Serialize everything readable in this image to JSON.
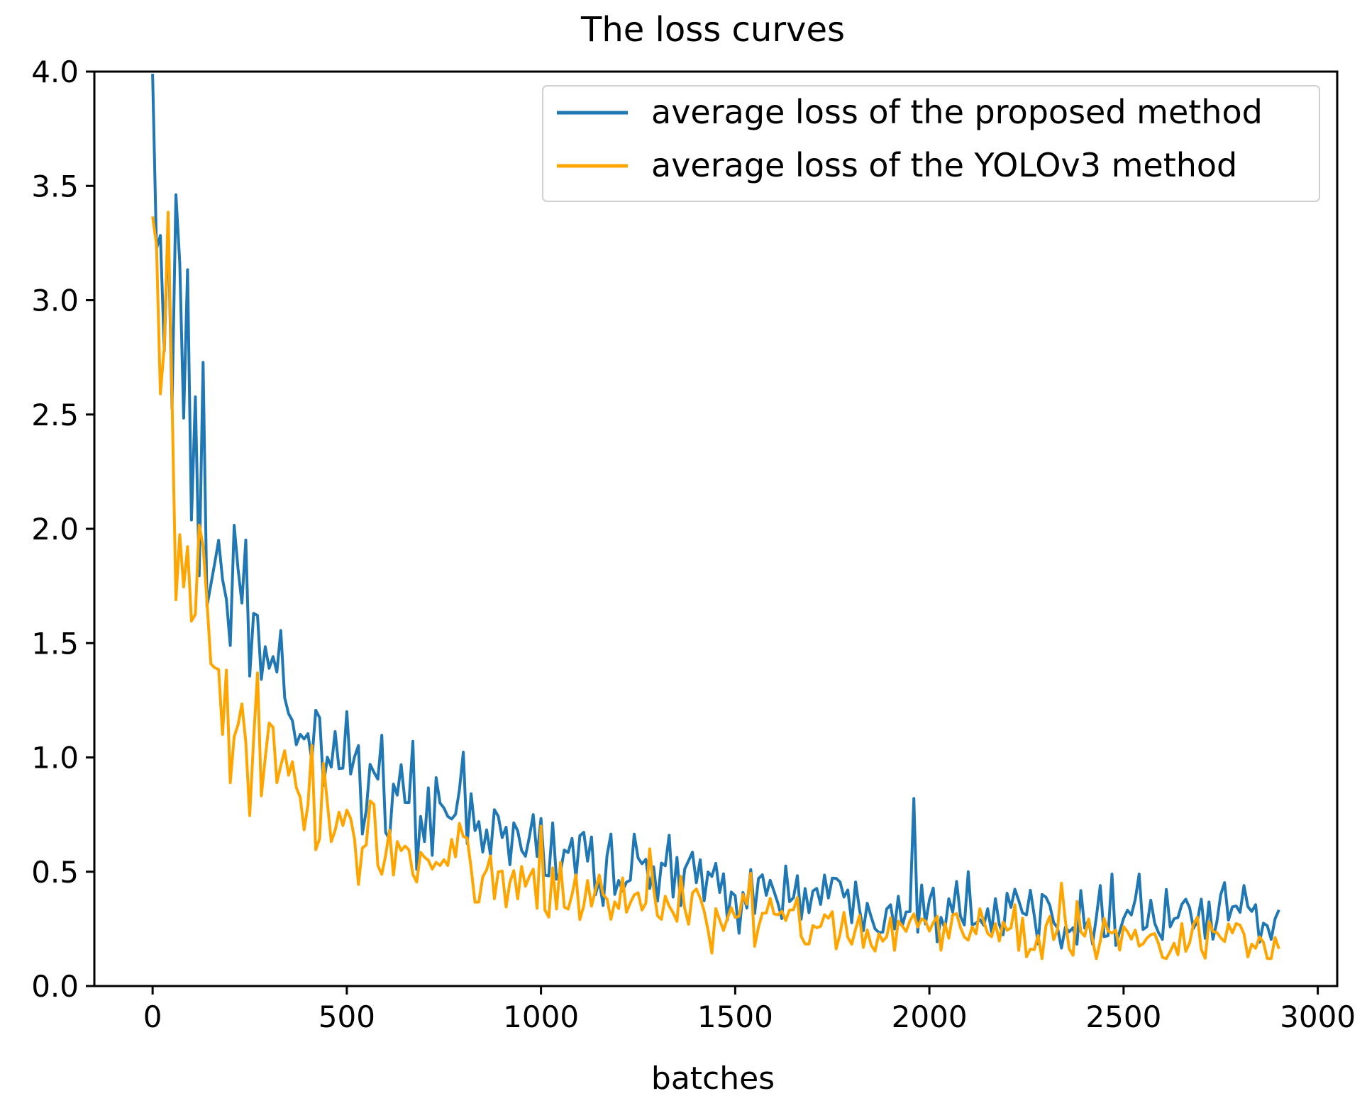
{
  "chart_data": {
    "type": "line",
    "title": "The loss curves",
    "xlabel": "batches",
    "ylabel": "",
    "xlim": [
      -150,
      3050
    ],
    "ylim": [
      0.0,
      4.0
    ],
    "xticks": [
      0,
      500,
      1000,
      1500,
      2000,
      2500,
      3000
    ],
    "yticks": [
      0.0,
      0.5,
      1.0,
      1.5,
      2.0,
      2.5,
      3.0,
      3.5,
      4.0
    ],
    "xtick_labels": [
      "0",
      "500",
      "1000",
      "1500",
      "2000",
      "2500",
      "3000"
    ],
    "ytick_labels": [
      "0.0",
      "0.5",
      "1.0",
      "1.5",
      "2.0",
      "2.5",
      "3.0",
      "3.5",
      "4.0"
    ],
    "grid": false,
    "legend_position": "top-right",
    "x_range": [
      0,
      2900
    ],
    "x_step": 10,
    "series": [
      {
        "name": "average loss of the proposed method",
        "color": "#1f77b4",
        "base_curve": {
          "start": 3.8,
          "floor": 0.27,
          "tau1": 115,
          "w1": 0.62,
          "tau2": 720,
          "w2": 0.38
        },
        "noise_amplitude": 0.22,
        "spikes": [
          {
            "x": 500,
            "y": 1.2
          },
          {
            "x": 1960,
            "y": 0.82
          },
          {
            "x": 2100,
            "y": 0.5
          },
          {
            "x": 2470,
            "y": 0.49
          },
          {
            "x": 2540,
            "y": 0.49
          },
          {
            "x": 260,
            "y": 1.63
          },
          {
            "x": 170,
            "y": 1.95
          }
        ]
      },
      {
        "name": "average loss of the YOLOv3 method",
        "color": "#ffa500",
        "base_curve": {
          "start": 3.65,
          "floor": 0.2,
          "tau1": 75,
          "w1": 0.68,
          "tau2": 640,
          "w2": 0.32
        },
        "noise_amplitude": 0.2,
        "spikes": [
          {
            "x": 1000,
            "y": 0.7
          },
          {
            "x": 1280,
            "y": 0.6
          },
          {
            "x": 270,
            "y": 1.37
          },
          {
            "x": 2340,
            "y": 0.45
          }
        ]
      }
    ]
  }
}
